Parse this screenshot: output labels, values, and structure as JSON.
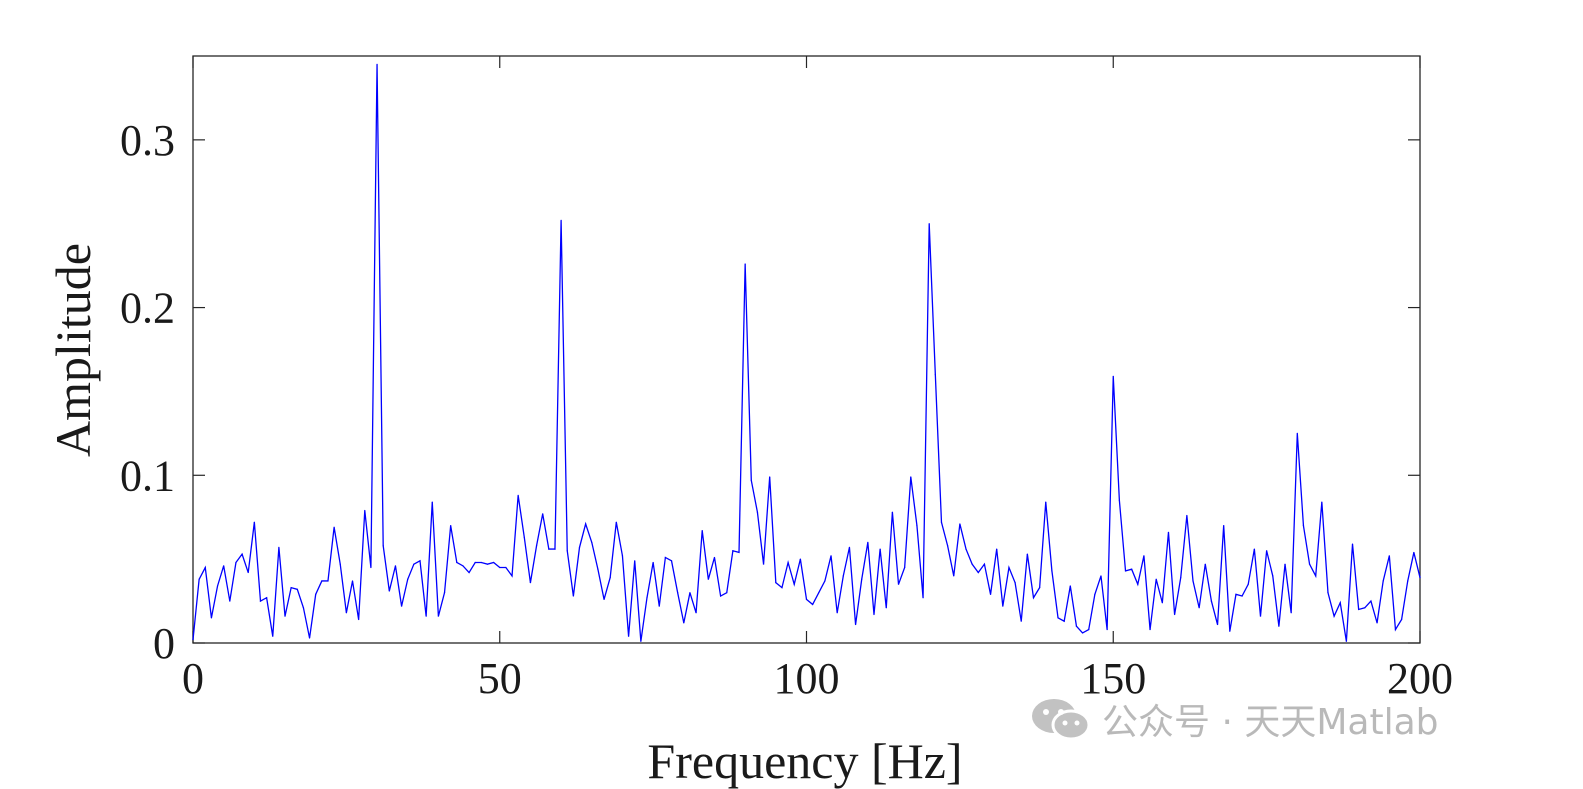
{
  "chart_data": {
    "type": "line",
    "title": "",
    "xlabel": "Frequency [Hz]",
    "ylabel": "Amplitude",
    "xlim": [
      0,
      200
    ],
    "ylim": [
      0,
      0.35
    ],
    "xticks": [
      0,
      50,
      100,
      150,
      200
    ],
    "xtick_labels": [
      "0",
      "50",
      "100",
      "150",
      "200"
    ],
    "yticks": [
      0,
      0.1,
      0.2,
      0.3
    ],
    "ytick_labels": [
      "0",
      "0.1",
      "0.2",
      "0.3"
    ],
    "grid": false,
    "line_color": "#0000ff",
    "series": [
      {
        "x": [
          0,
          1,
          2,
          3,
          4,
          5,
          6,
          7,
          8,
          9,
          10,
          11,
          12,
          13,
          14,
          15,
          16,
          17,
          18,
          19,
          20,
          21,
          22,
          23,
          24,
          25,
          26,
          27,
          28,
          29,
          30,
          31,
          32,
          33,
          34,
          35,
          36,
          37,
          38,
          39,
          40,
          41,
          42,
          43,
          44,
          45,
          46,
          47,
          48,
          49,
          50,
          51,
          52,
          53,
          54,
          55,
          56,
          57,
          58,
          59,
          60,
          61,
          62,
          63,
          64,
          65,
          66,
          67,
          68,
          69,
          70,
          71,
          72,
          73,
          74,
          75,
          76,
          77,
          78,
          79,
          80,
          81,
          82,
          83,
          84,
          85,
          86,
          87,
          88,
          89,
          90,
          91,
          92,
          93,
          94,
          95,
          96,
          97,
          98,
          99,
          100,
          101,
          102,
          103,
          104,
          105,
          106,
          107,
          108,
          109,
          110,
          111,
          112,
          113,
          114,
          115,
          116,
          117,
          118,
          119,
          120,
          121,
          122,
          123,
          124,
          125,
          126,
          127,
          128,
          129,
          130,
          131,
          132,
          133,
          134,
          135,
          136,
          137,
          138,
          139,
          140,
          141,
          142,
          143,
          144,
          145,
          146,
          147,
          148,
          149,
          150,
          151,
          152,
          153,
          154,
          155,
          156,
          157,
          158,
          159,
          160,
          161,
          162,
          163,
          164,
          165,
          166,
          167,
          168,
          169,
          170,
          171,
          172,
          173,
          174,
          175,
          176,
          177,
          178,
          179,
          180,
          181,
          182,
          183,
          184,
          185,
          186,
          187,
          188,
          189,
          190,
          191,
          192,
          193,
          194,
          195,
          196,
          197,
          198,
          199,
          200
        ],
        "y": [
          0.002,
          0.038,
          0.045,
          0.015,
          0.034,
          0.046,
          0.025,
          0.048,
          0.053,
          0.042,
          0.072,
          0.025,
          0.027,
          0.004,
          0.057,
          0.016,
          0.033,
          0.032,
          0.021,
          0.003,
          0.029,
          0.037,
          0.037,
          0.069,
          0.047,
          0.018,
          0.037,
          0.014,
          0.079,
          0.045,
          0.345,
          0.058,
          0.031,
          0.046,
          0.022,
          0.038,
          0.047,
          0.049,
          0.016,
          0.084,
          0.016,
          0.03,
          0.07,
          0.048,
          0.046,
          0.042,
          0.048,
          0.048,
          0.047,
          0.048,
          0.045,
          0.045,
          0.04,
          0.088,
          0.063,
          0.036,
          0.058,
          0.077,
          0.056,
          0.056,
          0.252,
          0.055,
          0.028,
          0.057,
          0.071,
          0.06,
          0.044,
          0.026,
          0.039,
          0.072,
          0.052,
          0.004,
          0.049,
          0.001,
          0.027,
          0.048,
          0.022,
          0.051,
          0.049,
          0.03,
          0.012,
          0.03,
          0.018,
          0.067,
          0.038,
          0.051,
          0.028,
          0.03,
          0.055,
          0.054,
          0.226,
          0.097,
          0.078,
          0.047,
          0.099,
          0.036,
          0.033,
          0.048,
          0.035,
          0.05,
          0.026,
          0.023,
          0.03,
          0.037,
          0.052,
          0.018,
          0.04,
          0.057,
          0.011,
          0.038,
          0.06,
          0.017,
          0.056,
          0.021,
          0.078,
          0.035,
          0.045,
          0.099,
          0.07,
          0.027,
          0.25,
          0.16,
          0.072,
          0.058,
          0.04,
          0.071,
          0.056,
          0.047,
          0.042,
          0.047,
          0.029,
          0.056,
          0.022,
          0.045,
          0.036,
          0.013,
          0.053,
          0.027,
          0.033,
          0.084,
          0.043,
          0.015,
          0.013,
          0.034,
          0.01,
          0.006,
          0.008,
          0.029,
          0.04,
          0.008,
          0.159,
          0.085,
          0.043,
          0.044,
          0.035,
          0.052,
          0.008,
          0.038,
          0.024,
          0.066,
          0.017,
          0.039,
          0.076,
          0.037,
          0.021,
          0.047,
          0.025,
          0.011,
          0.07,
          0.007,
          0.029,
          0.028,
          0.035,
          0.056,
          0.016,
          0.055,
          0.04,
          0.01,
          0.047,
          0.018,
          0.125,
          0.07,
          0.047,
          0.04,
          0.084,
          0.03,
          0.016,
          0.024,
          0.001,
          0.059,
          0.02,
          0.021,
          0.025,
          0.012,
          0.037,
          0.052,
          0.008,
          0.014,
          0.037,
          0.054,
          0.039
        ]
      }
    ]
  },
  "watermark": {
    "text": "公众号 · 天天Matlab",
    "icon": "wechat-icon",
    "color": "#b9b9b9"
  }
}
